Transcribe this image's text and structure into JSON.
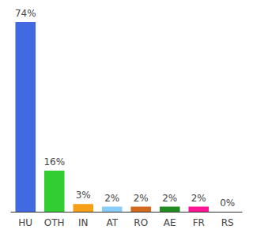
{
  "chart_data": {
    "type": "bar",
    "categories": [
      "HU",
      "OTH",
      "IN",
      "AT",
      "RO",
      "AE",
      "FR",
      "RS"
    ],
    "values": [
      74,
      16,
      3,
      2,
      2,
      2,
      2,
      0
    ],
    "value_labels": [
      "74%",
      "16%",
      "3%",
      "2%",
      "2%",
      "2%",
      "2%",
      "0%"
    ],
    "colors": [
      "#4169e1",
      "#32cd32",
      "#f5a017",
      "#87cefa",
      "#d2691e",
      "#228b22",
      "#ff1493",
      "#808080"
    ],
    "ylim": [
      0,
      74
    ],
    "grid": false,
    "data_labels": true,
    "tick_labels": "x"
  }
}
